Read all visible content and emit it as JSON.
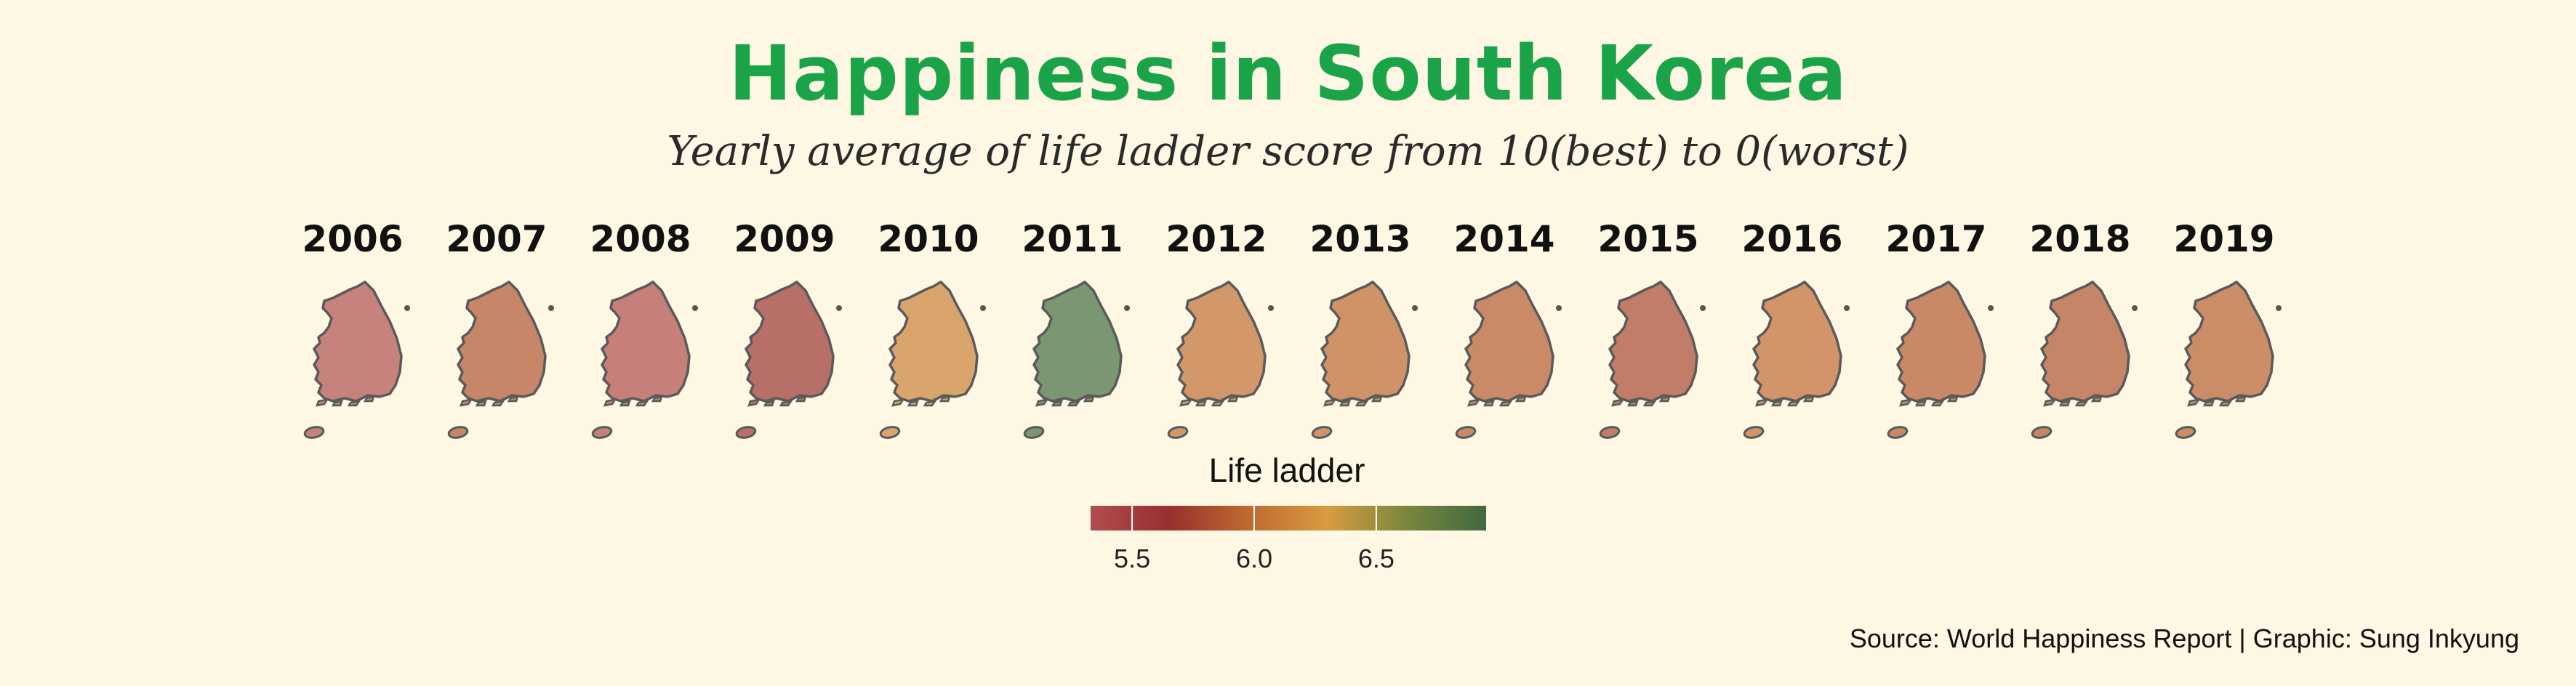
{
  "title": "Happiness in South Korea",
  "subtitle": "Yearly average of life ladder score from 10(best) to 0(worst)",
  "caption": "Source: World Happiness Report | Graphic: Sung Inkyung",
  "legend": {
    "title": "Life ladder",
    "ticks": [
      "5.5",
      "6.0",
      "6.5"
    ]
  },
  "colors": {
    "title": "#1aa447",
    "background": "#fdf7e4",
    "map_outline": "#5a5a5a"
  },
  "chart_data": {
    "type": "choropleth-small-multiples",
    "title": "Happiness in South Korea",
    "subtitle": "Yearly average of life ladder score from 10(best) to 0(worst)",
    "region": "South Korea",
    "legend_title": "Life ladder",
    "legend_ticks": [
      5.5,
      6.0,
      6.5
    ],
    "color_range": [
      5.33,
      6.95
    ],
    "color_scale": [
      "#a83a3e",
      "#8b1a1a",
      "#b85a1c",
      "#d4912e",
      "#6a7a2a",
      "#2a5a2e"
    ],
    "years": [
      "2006",
      "2007",
      "2008",
      "2009",
      "2010",
      "2011",
      "2012",
      "2013",
      "2014",
      "2015",
      "2016",
      "2017",
      "2018",
      "2019"
    ],
    "values": [
      5.33,
      5.85,
      5.38,
      5.64,
      6.12,
      6.95,
      6.0,
      5.96,
      5.88,
      5.78,
      5.97,
      5.87,
      5.84,
      5.9
    ]
  }
}
